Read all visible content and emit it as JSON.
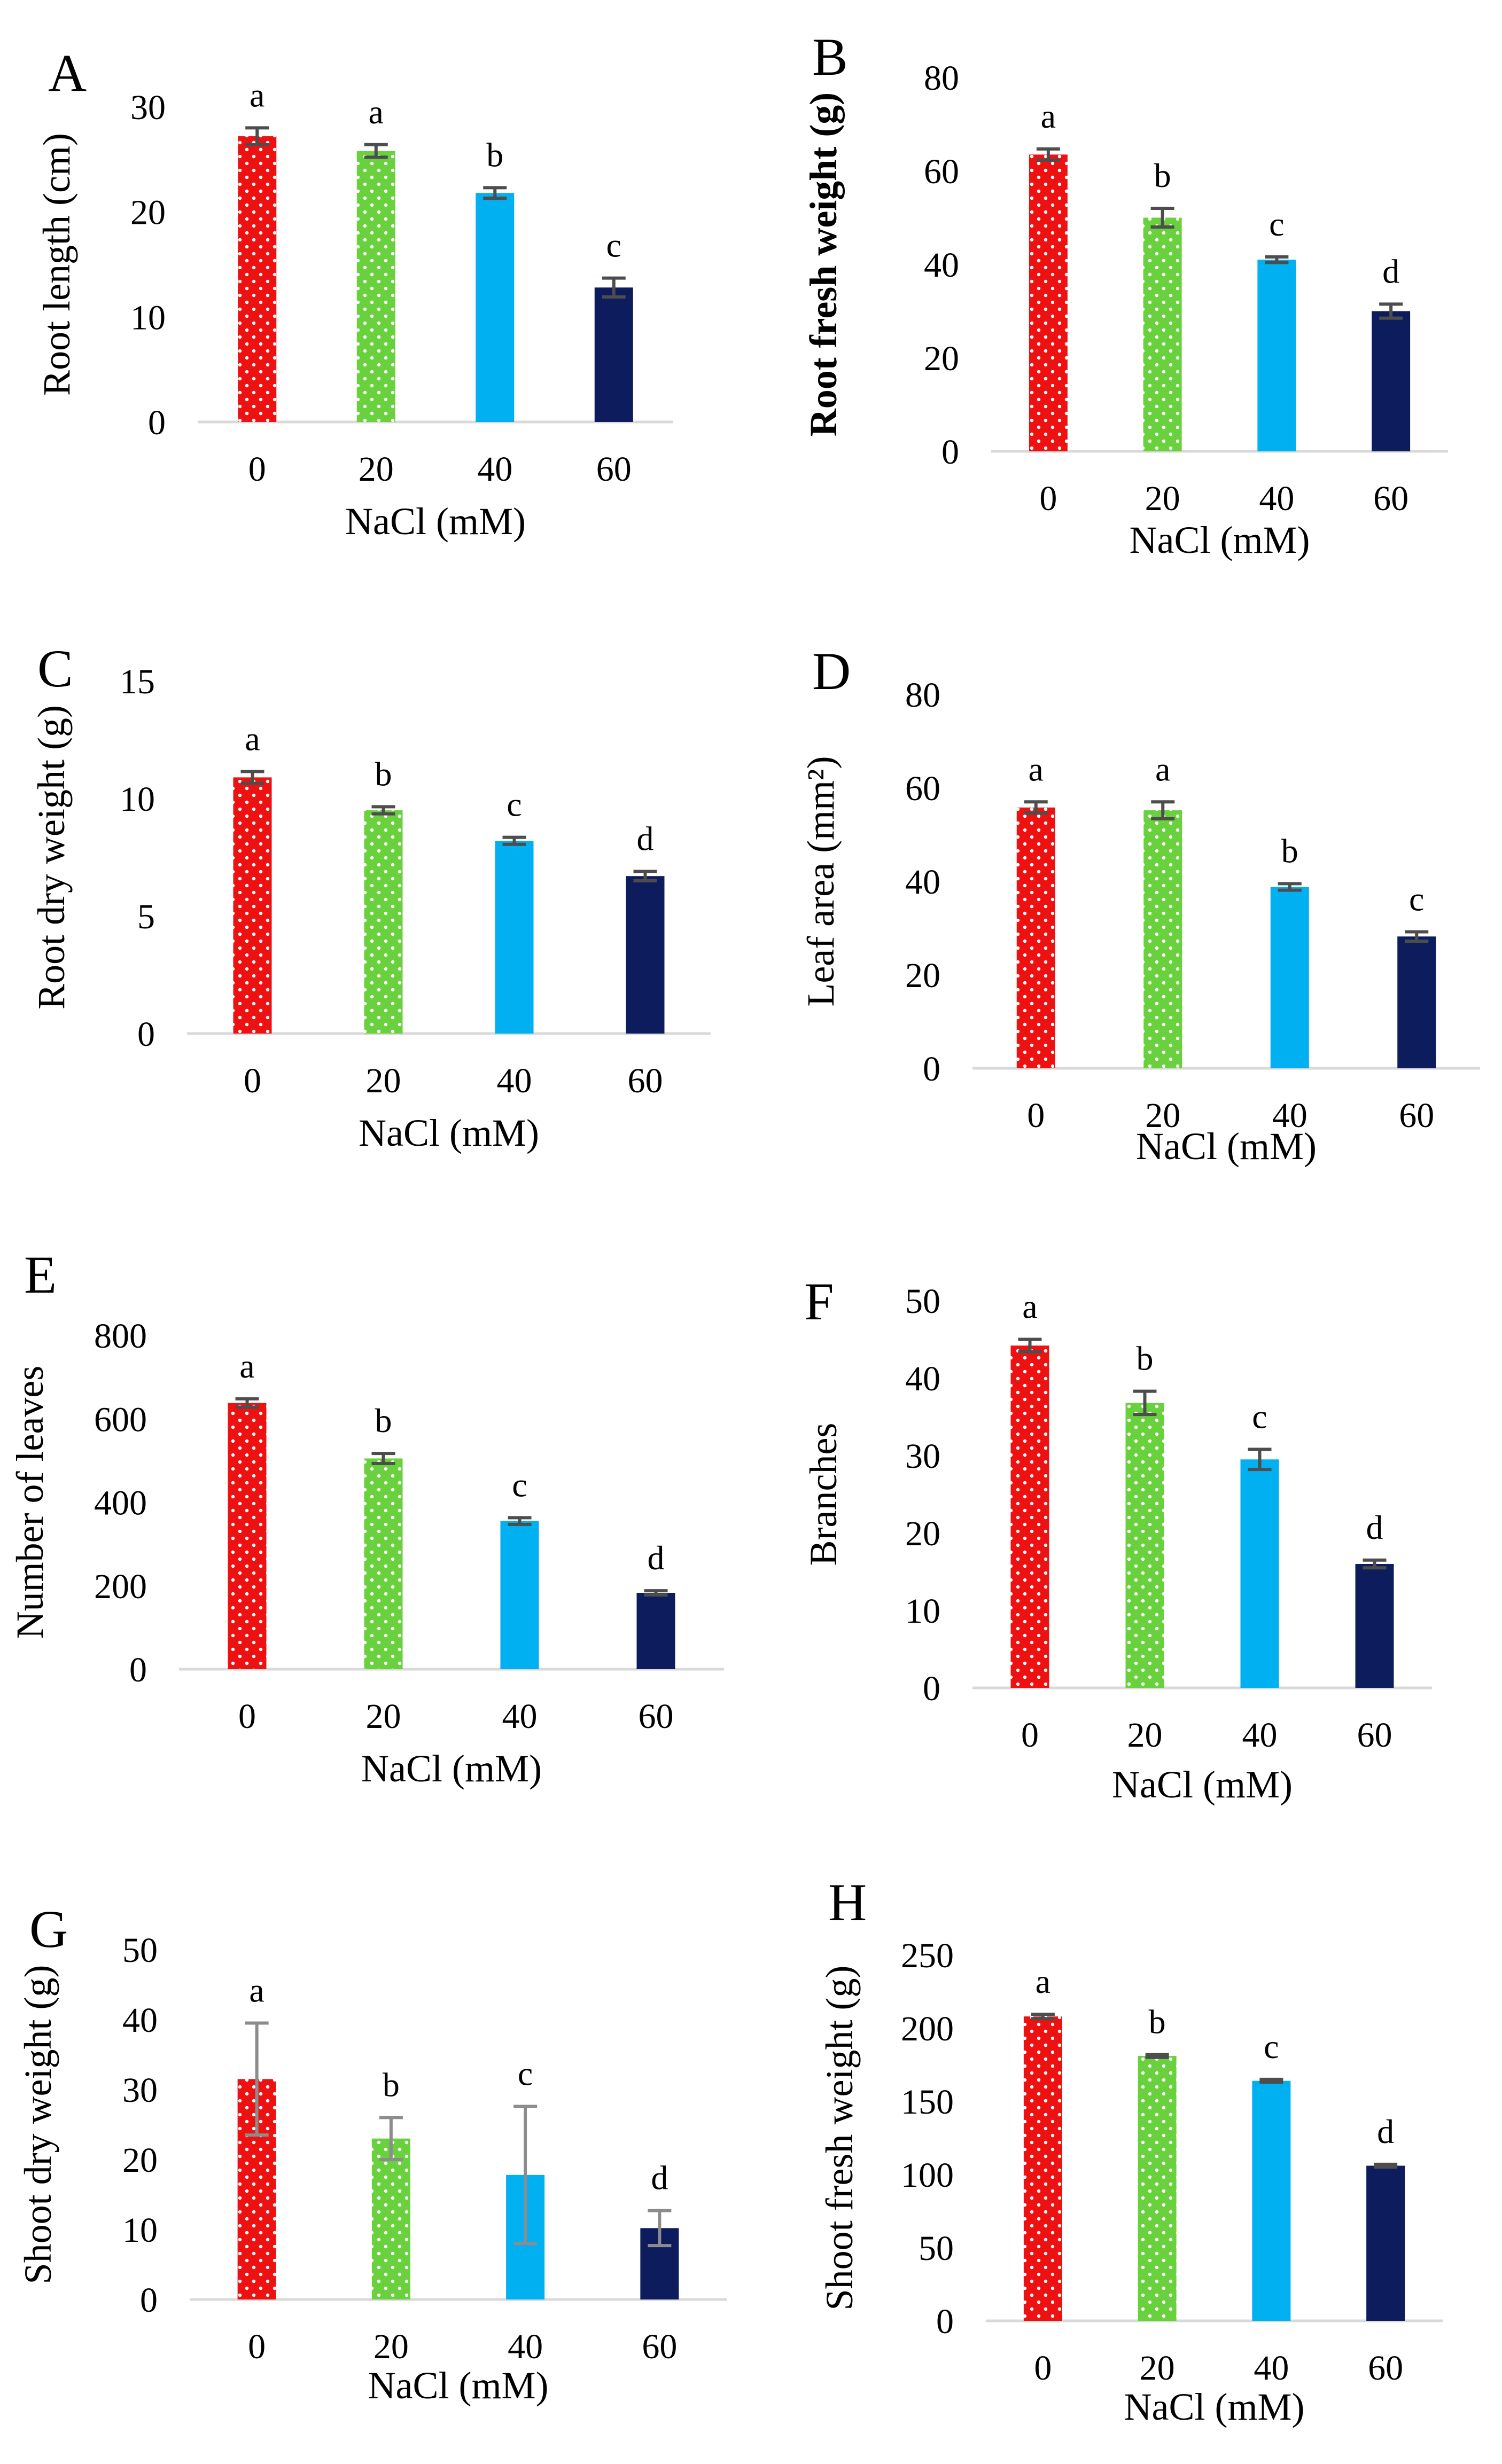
{
  "figure": {
    "colors": {
      "red": "#ee1111",
      "green": "#6ad13e",
      "blue": "#00b0f0",
      "navy": "#0d1c5c",
      "dots": "#ffffff"
    }
  },
  "chart_data": [
    {
      "type": "bar",
      "panel": "A",
      "categories": [
        "0",
        "20",
        "40",
        "60"
      ],
      "values": [
        27.2,
        25.8,
        21.8,
        12.8
      ],
      "errors": [
        0.8,
        0.6,
        0.5,
        0.9
      ],
      "sig_letters": [
        "a",
        "a",
        "b",
        "c"
      ],
      "title": "",
      "xlabel": "NaCl (mM)",
      "ylabel": "Root length (cm)",
      "ylim": [
        0,
        30
      ],
      "yticks": [
        "0",
        "10",
        "20",
        "30"
      ]
    },
    {
      "type": "bar",
      "panel": "B",
      "categories": [
        "0",
        "20",
        "40",
        "60"
      ],
      "values": [
        63.5,
        50.0,
        41.0,
        30.0
      ],
      "errors": [
        1.2,
        2.0,
        0.6,
        1.5
      ],
      "sig_letters": [
        "a",
        "b",
        "c",
        "d"
      ],
      "title": "",
      "xlabel": "NaCl (mM)",
      "ylabel": "Root fresh weight (g)",
      "ylim": [
        0,
        80
      ],
      "yticks": [
        "0",
        "20",
        "40",
        "60",
        "80"
      ]
    },
    {
      "type": "bar",
      "panel": "C",
      "categories": [
        "0",
        "20",
        "40",
        "60"
      ],
      "values": [
        10.9,
        9.5,
        8.2,
        6.7
      ],
      "errors": [
        0.25,
        0.15,
        0.15,
        0.2
      ],
      "sig_letters": [
        "a",
        "b",
        "c",
        "d"
      ],
      "title": "",
      "xlabel": "NaCl (mM)",
      "ylabel": "Root dry weight (g)",
      "ylim": [
        0,
        15
      ],
      "yticks": [
        "0",
        "5",
        "10",
        "15"
      ]
    },
    {
      "type": "bar",
      "panel": "D",
      "categories": [
        "0",
        "20",
        "40",
        "60"
      ],
      "values": [
        55.8,
        55.2,
        38.8,
        28.2
      ],
      "errors": [
        1.2,
        1.8,
        0.7,
        1.0
      ],
      "sig_letters": [
        "a",
        "a",
        "b",
        "c"
      ],
      "title": "",
      "xlabel": "NaCl (mM)",
      "ylabel": "Leaf area (mm²)",
      "ylim": [
        0,
        80
      ],
      "yticks": [
        "0",
        "20",
        "40",
        "60",
        "80"
      ]
    },
    {
      "type": "bar",
      "panel": "E",
      "categories": [
        "0",
        "20",
        "40",
        "60"
      ],
      "values": [
        638,
        505,
        355,
        183
      ],
      "errors": [
        10,
        12,
        8,
        5
      ],
      "sig_letters": [
        "a",
        "b",
        "c",
        "d"
      ],
      "title": "",
      "xlabel": "NaCl (mM)",
      "ylabel": "Number of leaves",
      "ylim": [
        0,
        800
      ],
      "yticks": [
        "0",
        "200",
        "400",
        "600",
        "800"
      ]
    },
    {
      "type": "bar",
      "panel": "F",
      "categories": [
        "0",
        "20",
        "40",
        "60"
      ],
      "values": [
        44.2,
        36.8,
        29.5,
        16.0
      ],
      "errors": [
        0.8,
        1.5,
        1.3,
        0.5
      ],
      "sig_letters": [
        "a",
        "b",
        "c",
        "d"
      ],
      "title": "",
      "xlabel": "NaCl (mM)",
      "ylabel": "Branches",
      "ylim": [
        0,
        50
      ],
      "yticks": [
        "0",
        "10",
        "20",
        "30",
        "40",
        "50"
      ]
    },
    {
      "type": "bar",
      "panel": "G",
      "categories": [
        "0",
        "20",
        "40",
        "60"
      ],
      "values": [
        31.5,
        23.0,
        17.8,
        10.2
      ],
      "errors": [
        8.0,
        3.0,
        9.8,
        2.5
      ],
      "sig_letters": [
        "a",
        "b",
        "c",
        "d"
      ],
      "title": "",
      "xlabel": "NaCl (mM)",
      "ylabel": "Shoot dry weight (g)",
      "ylim": [
        0,
        50
      ],
      "yticks": [
        "0",
        "10",
        "20",
        "30",
        "40",
        "50"
      ]
    },
    {
      "type": "bar",
      "panel": "H",
      "categories": [
        "0",
        "20",
        "40",
        "60"
      ],
      "values": [
        208,
        181,
        164,
        106
      ],
      "errors": [
        1.5,
        1.0,
        1.0,
        1.0
      ],
      "sig_letters": [
        "a",
        "b",
        "c",
        "d"
      ],
      "title": "",
      "xlabel": "NaCl (mM)",
      "ylabel": "Shoot fresh weight (g)",
      "ylim": [
        0,
        250
      ],
      "yticks": [
        "0",
        "50",
        "100",
        "150",
        "200",
        "250"
      ]
    }
  ]
}
